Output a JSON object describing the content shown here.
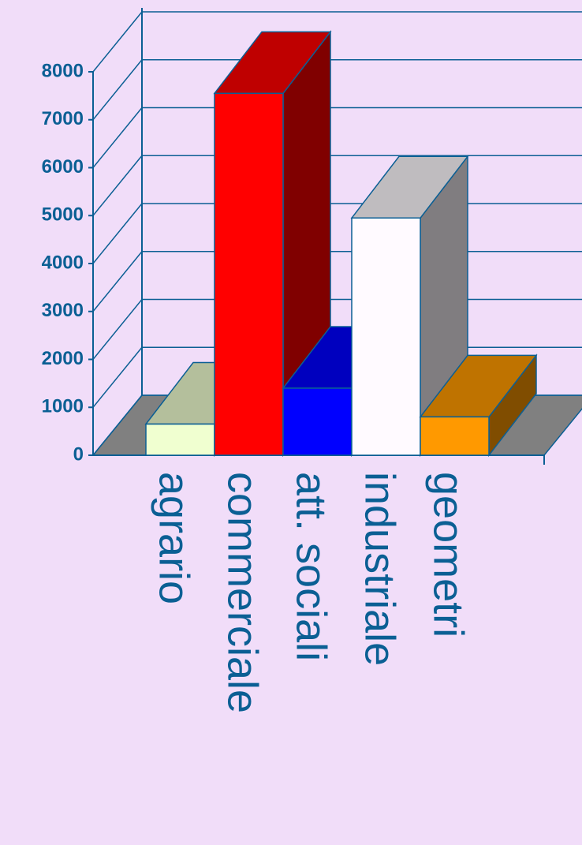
{
  "chart_data": {
    "type": "bar3d",
    "categories": [
      "agrario",
      "commerciale",
      "att. sociali",
      "industriale",
      "geometri"
    ],
    "values": [
      650,
      7550,
      1400,
      4950,
      800
    ],
    "colors": [
      "#f0ffd0",
      "#ff0000",
      "#0000ff",
      "#fffaff",
      "#ff9900"
    ],
    "ylim": [
      0,
      8000
    ],
    "yticks": [
      0,
      1000,
      2000,
      3000,
      4000,
      5000,
      6000,
      7000,
      8000
    ],
    "grid": true
  }
}
